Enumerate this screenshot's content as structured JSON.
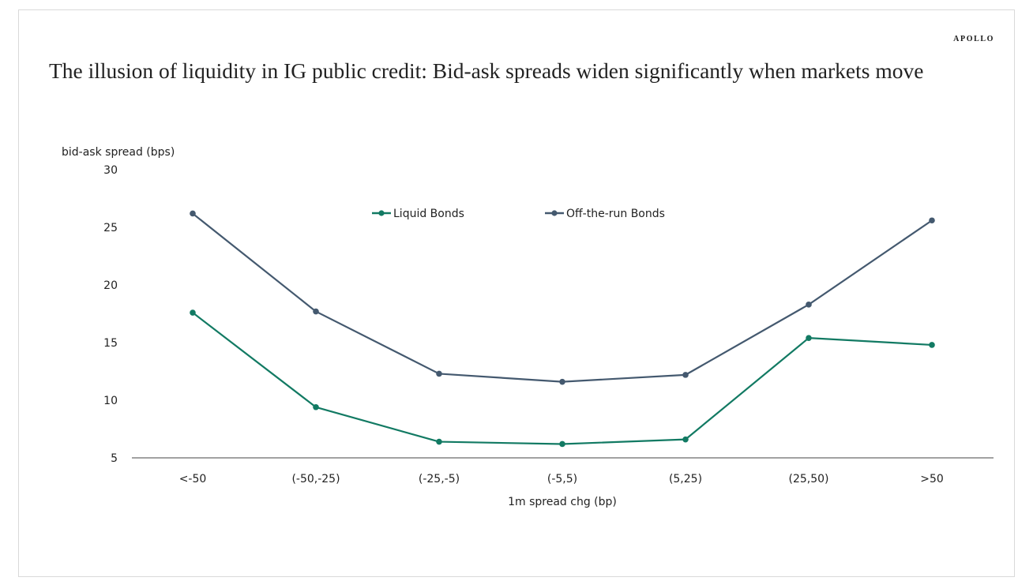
{
  "brand": "APOLLO",
  "title": "The illusion of liquidity in IG public credit: Bid-ask spreads widen significantly when markets move",
  "colors": {
    "liquid": "#127a63",
    "offrun": "#44596f",
    "axis": "#444444"
  },
  "chart_data": {
    "type": "line",
    "title": "The illusion of liquidity in IG public credit: Bid-ask spreads widen significantly when markets move",
    "xlabel": "1m spread chg (bp)",
    "ylabel": "bid-ask spread (bps)",
    "ylim": [
      5,
      30
    ],
    "yticks": [
      "5",
      "10",
      "15",
      "20",
      "25",
      "30"
    ],
    "grid": false,
    "legend": "top-center",
    "categories": [
      "<-50",
      "(-50,-25)",
      "(-25,-5)",
      "(-5,5)",
      "(5,25)",
      "(25,50)",
      ">50"
    ],
    "series": [
      {
        "name": "Liquid Bonds",
        "values": [
          17.6,
          9.4,
          6.4,
          6.2,
          6.6,
          15.4,
          14.8
        ]
      },
      {
        "name": "Off-the-run Bonds",
        "values": [
          26.2,
          17.7,
          12.3,
          11.6,
          12.2,
          18.3,
          25.6
        ]
      }
    ]
  }
}
